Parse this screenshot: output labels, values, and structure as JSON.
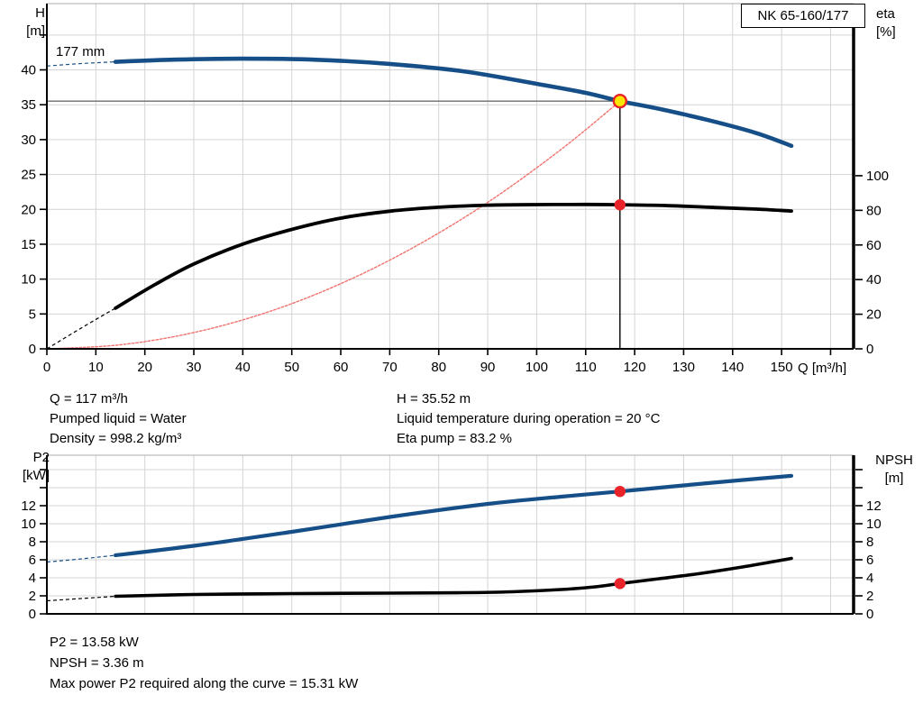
{
  "top_chart": {
    "model": "NK 65-160/177",
    "y_left_label": [
      "H",
      "[m]"
    ],
    "y_right_label": [
      "eta",
      "[%]"
    ],
    "x_label": "Q [m³/h]",
    "impeller_annotation": "177 mm"
  },
  "bottom_chart": {
    "y_left_label": [
      "P2",
      "[kW]"
    ],
    "y_right_label": [
      "NPSH",
      "[m]"
    ]
  },
  "operating_point_text": {
    "left": [
      "Q = 117 m³/h",
      "Pumped liquid = Water",
      "Density = 998.2 kg/m³"
    ],
    "right": [
      "H = 35.52 m",
      "Liquid temperature during operation = 20 °C",
      "Eta pump = 83.2 %"
    ]
  },
  "result_text": [
    "P2 = 13.58 kW",
    "NPSH = 3.36 m",
    "Max power P2 required along the curve = 15.31 kW"
  ],
  "chart_data": [
    {
      "type": "line",
      "title": "NK 65-160/177",
      "xlabel": "Q [m³/h]",
      "ylabel_left": "H [m]",
      "ylabel_right": "eta [%]",
      "xlim": [
        0,
        164.7
      ],
      "ylim_left": [
        0,
        49.5
      ],
      "ylim_right": [
        0,
        199.4
      ],
      "grid": true,
      "style": {
        "grid_color": "#d4d4d4",
        "border_color": "#adadad"
      },
      "x_ticks": [
        0,
        10,
        20,
        30,
        40,
        50,
        60,
        70,
        80,
        90,
        100,
        110,
        120,
        130,
        140,
        150
      ],
      "x_ticks_unlabeled": [
        160
      ],
      "y_ticks_left": [
        0,
        5,
        10,
        15,
        20,
        25,
        30,
        35,
        40
      ],
      "y_ticks_left_unlabeled": [
        45
      ],
      "y_ticks_right": [
        0,
        20,
        40,
        60,
        80,
        100
      ],
      "y_ticks_right_unlabeled": [],
      "grid_x": [
        10,
        20,
        30,
        40,
        50,
        60,
        70,
        80,
        90,
        100,
        110,
        120,
        130,
        140,
        150,
        160
      ],
      "grid_y": [
        5,
        10,
        15,
        20,
        25,
        30,
        35,
        40,
        45
      ],
      "series": [
        {
          "name": "system-curve",
          "axis": "left",
          "color": "#f2716d",
          "width": 1.4,
          "style": "dotted",
          "points": [
            [
              0,
              0
            ],
            [
              15,
              0.58
            ],
            [
              30,
              2.34
            ],
            [
              45,
              5.25
            ],
            [
              60,
              9.34
            ],
            [
              75,
              14.6
            ],
            [
              90,
              21.0
            ],
            [
              105,
              28.6
            ],
            [
              117,
              35.52
            ]
          ]
        },
        {
          "name": "efficiency-curve",
          "axis": "right",
          "color": "#000000",
          "width": 3.8,
          "dash_intro": [
            [
              0,
              0
            ],
            [
              7,
              12
            ],
            [
              14,
              23.5
            ]
          ],
          "points": [
            [
              14,
              23.5
            ],
            [
              22,
              37
            ],
            [
              30,
              49
            ],
            [
              40,
              60.5
            ],
            [
              50,
              69
            ],
            [
              60,
              75.5
            ],
            [
              70,
              79.5
            ],
            [
              80,
              81.8
            ],
            [
              90,
              83.0
            ],
            [
              100,
              83.3
            ],
            [
              110,
              83.4
            ],
            [
              117,
              83.2
            ],
            [
              127,
              82.7
            ],
            [
              137,
              81.6
            ],
            [
              145,
              80.7
            ],
            [
              152,
              79.6
            ]
          ]
        },
        {
          "name": "head-curve",
          "axis": "left",
          "color": "#164f87",
          "width": 4.6,
          "dash_intro": [
            [
              0,
              40.55
            ],
            [
              7,
              40.9
            ],
            [
              14,
              41.15
            ]
          ],
          "points": [
            [
              14,
              41.15
            ],
            [
              25,
              41.45
            ],
            [
              40,
              41.6
            ],
            [
              55,
              41.45
            ],
            [
              70,
              40.85
            ],
            [
              85,
              39.8
            ],
            [
              100,
              38.0
            ],
            [
              110,
              36.7
            ],
            [
              117,
              35.52
            ],
            [
              125,
              34.4
            ],
            [
              135,
              32.8
            ],
            [
              145,
              30.9
            ],
            [
              152,
              29.1
            ]
          ]
        }
      ],
      "duty_point": {
        "Q": 117,
        "H": 35.52,
        "eta": 83.2
      },
      "ref_lines": [
        {
          "name": "duty-vertical-line",
          "type": "v",
          "q": 117,
          "from": 0,
          "to": 35.52,
          "axis": "left",
          "color": "#000000",
          "width": 1.4
        },
        {
          "name": "duty-horizontal-line",
          "type": "h",
          "v": 35.52,
          "from": 0,
          "to": 117,
          "axis": "left",
          "color": "#6e6e6e",
          "width": 1.3
        }
      ],
      "markers": [
        {
          "name": "eta-point-marker",
          "axis": "right",
          "q": 117,
          "v": 83.2,
          "r": 6.2,
          "fill": "#e8232a"
        },
        {
          "name": "duty-point-marker",
          "axis": "left",
          "q": 117,
          "v": 35.52,
          "r": 7,
          "fill": "#ffe600",
          "stroke": "#e8232a",
          "stroke_width": 2.4
        }
      ]
    },
    {
      "type": "line",
      "title": "",
      "xlabel": "Q [m³/h]",
      "ylabel_left": "P2 [kW]",
      "ylabel_right": "NPSH [m]",
      "xlim": [
        0,
        164.7
      ],
      "ylim_left": [
        0,
        17.6
      ],
      "ylim_right": [
        0,
        17.6
      ],
      "grid": true,
      "style": {
        "grid_color": "#d4d4d4",
        "border_color": "#adadad"
      },
      "x_ticks": [],
      "x_ticks_unlabeled": [],
      "y_ticks_left": [
        0,
        2,
        4,
        6,
        8,
        10,
        12
      ],
      "y_ticks_left_unlabeled": [
        14,
        16
      ],
      "y_ticks_right": [
        0,
        2,
        4,
        6,
        8,
        10,
        12
      ],
      "y_ticks_right_unlabeled": [
        14,
        16
      ],
      "grid_x": [
        10,
        20,
        30,
        40,
        50,
        60,
        70,
        80,
        90,
        100,
        110,
        120,
        130,
        140,
        150,
        160
      ],
      "grid_y": [
        2,
        4,
        6,
        8,
        10,
        12,
        14,
        16
      ],
      "series": [
        {
          "name": "p2-curve",
          "axis": "left",
          "color": "#164f87",
          "width": 4.2,
          "dash_intro": [
            [
              0,
              5.75
            ],
            [
              7,
              6.1
            ],
            [
              14,
              6.5
            ]
          ],
          "points": [
            [
              14,
              6.5
            ],
            [
              30,
              7.55
            ],
            [
              50,
              9.1
            ],
            [
              70,
              10.75
            ],
            [
              90,
              12.2
            ],
            [
              105,
              13.0
            ],
            [
              117,
              13.58
            ],
            [
              130,
              14.25
            ],
            [
              140,
              14.75
            ],
            [
              152,
              15.31
            ]
          ]
        },
        {
          "name": "npsh-curve",
          "axis": "left",
          "color": "#000000",
          "width": 3.6,
          "dash_intro": [
            [
              0,
              1.45
            ],
            [
              7,
              1.7
            ],
            [
              14,
              1.95
            ]
          ],
          "points": [
            [
              14,
              1.95
            ],
            [
              30,
              2.15
            ],
            [
              50,
              2.25
            ],
            [
              70,
              2.3
            ],
            [
              85,
              2.35
            ],
            [
              95,
              2.45
            ],
            [
              105,
              2.7
            ],
            [
              112,
              3.0
            ],
            [
              117,
              3.36
            ],
            [
              125,
              3.9
            ],
            [
              133,
              4.45
            ],
            [
              142,
              5.2
            ],
            [
              152,
              6.15
            ]
          ]
        }
      ],
      "ref_lines": [],
      "markers": [
        {
          "name": "p2-point-marker",
          "axis": "left",
          "q": 117,
          "v": 13.58,
          "r": 6.2,
          "fill": "#e8232a"
        },
        {
          "name": "npsh-point-marker",
          "axis": "left",
          "q": 117,
          "v": 3.36,
          "r": 6.2,
          "fill": "#e8232a"
        }
      ]
    }
  ]
}
